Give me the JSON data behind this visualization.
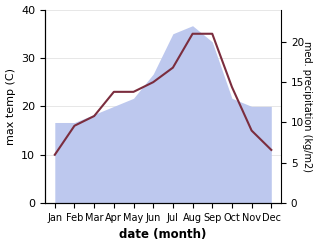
{
  "months": [
    "Jan",
    "Feb",
    "Mar",
    "Apr",
    "May",
    "Jun",
    "Jul",
    "Aug",
    "Sep",
    "Oct",
    "Nov",
    "Dec"
  ],
  "month_positions": [
    0,
    1,
    2,
    3,
    4,
    5,
    6,
    7,
    8,
    9,
    10,
    11
  ],
  "max_temp": [
    10,
    16,
    18,
    23,
    23,
    25,
    28,
    35,
    35,
    24,
    15,
    11
  ],
  "precipitation": [
    10,
    10,
    11,
    12,
    13,
    16,
    21,
    22,
    20,
    13,
    12,
    12
  ],
  "temp_color": "#7B2D3E",
  "precip_fill_color": "#BDC8EE",
  "temp_ylim": [
    0,
    40
  ],
  "precip_ylim": [
    0,
    24
  ],
  "precip_yticks": [
    0,
    5,
    10,
    15,
    20
  ],
  "temp_yticks": [
    0,
    10,
    20,
    30,
    40
  ],
  "xlabel": "date (month)",
  "ylabel_left": "max temp (C)",
  "ylabel_right": "med. precipitation (kg/m2)",
  "ylabel_right_rotation": 270,
  "background_color": "#ffffff"
}
